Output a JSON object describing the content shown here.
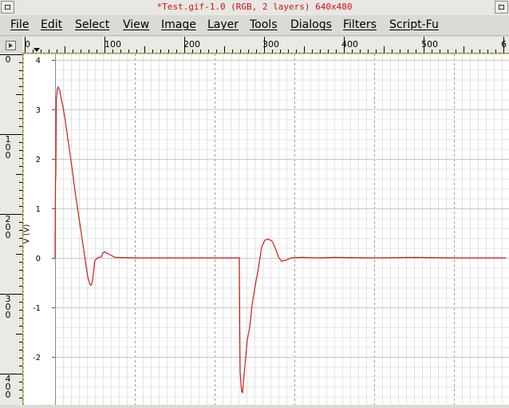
{
  "window": {
    "title": "*Test.gif-1.0 (RGB, 2 layers) 640x480"
  },
  "menubar": {
    "items": [
      "File",
      "Edit",
      "Select",
      "View",
      "Image",
      "Layer",
      "Tools",
      "Dialogs",
      "Filters",
      "Script-Fu"
    ]
  },
  "rulers": {
    "horizontal_labels": [
      "0",
      "100",
      "200",
      "300",
      "400",
      "500",
      "6"
    ],
    "vertical_labels": [
      "0",
      "100",
      "200",
      "300",
      "400"
    ]
  },
  "chart_data": {
    "type": "line",
    "ylabel": "V (V)",
    "xlabel": "",
    "title": "",
    "ylim": [
      -2.8,
      4
    ],
    "yticks": [
      4,
      3,
      2,
      1,
      0,
      -1,
      -2
    ],
    "grid": true,
    "colors": {
      "line": "#d11a1a",
      "grid": "#d4d4d4"
    },
    "x": [
      0,
      0.5,
      1,
      1.6,
      2.8,
      4,
      6,
      8,
      10,
      13,
      17,
      21,
      25,
      29,
      33,
      37,
      41,
      43,
      44,
      45.5,
      47,
      50,
      54,
      58,
      60,
      62,
      66,
      75,
      100,
      150,
      200,
      231,
      231.5,
      232,
      233,
      234,
      235,
      237,
      241,
      244,
      247,
      251,
      255,
      259,
      263,
      267,
      272,
      276,
      280,
      284,
      290,
      296,
      310,
      330,
      350,
      400,
      450,
      500,
      565
    ],
    "y": [
      0,
      1.5,
      1.7,
      3.2,
      3.42,
      3.45,
      3.38,
      3.2,
      3.05,
      2.75,
      2.3,
      1.85,
      1.35,
      0.92,
      0.48,
      0.05,
      -0.38,
      -0.5,
      -0.54,
      -0.55,
      -0.45,
      -0.05,
      0.01,
      0.02,
      0.1,
      0.12,
      0.09,
      0.01,
      0,
      0,
      0,
      0,
      -1.4,
      -2.3,
      -2.55,
      -2.7,
      -2.72,
      -2.35,
      -1.65,
      -1.4,
      -0.95,
      -0.55,
      -0.2,
      0.22,
      0.36,
      0.38,
      0.34,
      0.2,
      0.02,
      -0.07,
      -0.04,
      0.0,
      0.01,
      0.0,
      0.01,
      0.0,
      0.01,
      0.0,
      0.0
    ]
  }
}
